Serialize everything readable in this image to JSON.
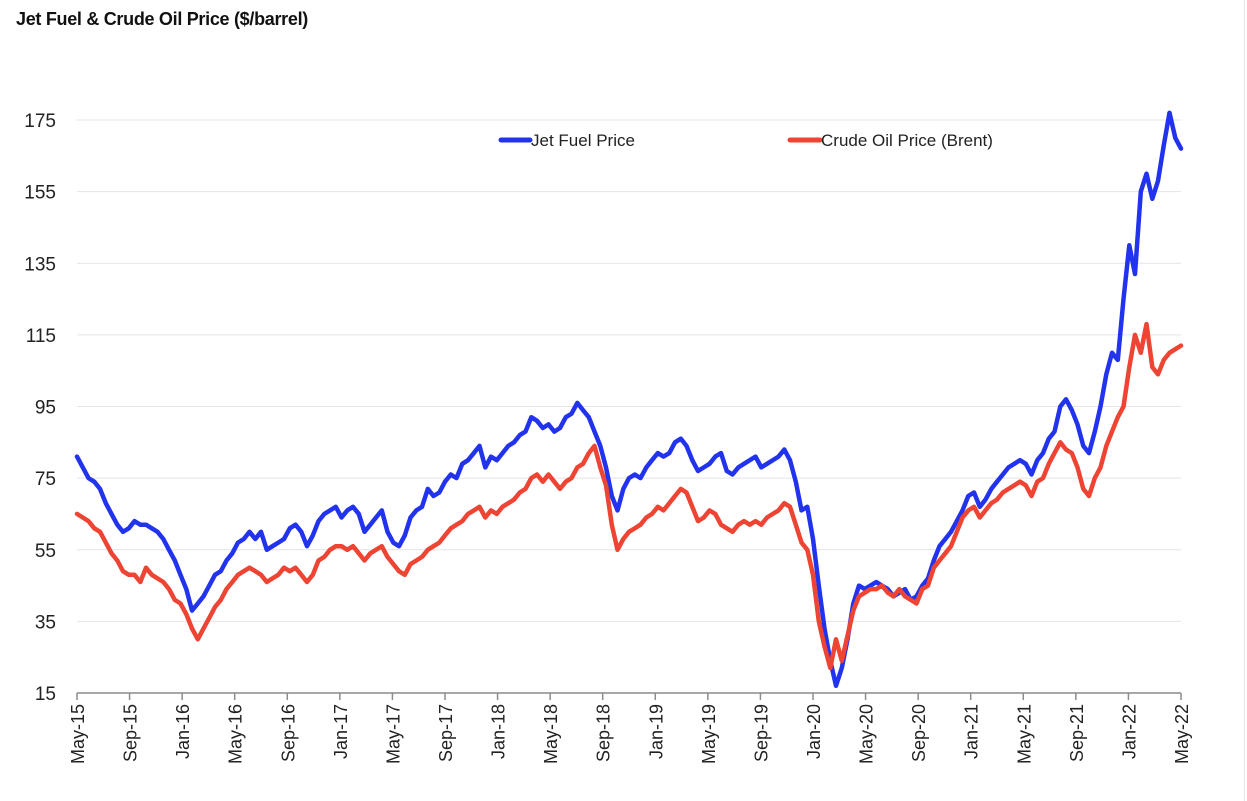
{
  "chart_data": {
    "type": "line",
    "title": "Jet Fuel & Crude Oil Price ($/barrel)",
    "xlabel": "",
    "ylabel": "",
    "ylim": [
      15,
      175
    ],
    "yticks": [
      15,
      35,
      55,
      75,
      95,
      115,
      135,
      155,
      175
    ],
    "x_start": "May-15",
    "x_end": "May-22",
    "x_step_months": 0.5,
    "xtick_labels": [
      "May-15",
      "Sep-15",
      "Jan-16",
      "May-16",
      "Sep-16",
      "Jan-17",
      "May-17",
      "Sep-17",
      "Jan-18",
      "May-18",
      "Sep-18",
      "Jan-19",
      "May-19",
      "Sep-19",
      "Jan-20",
      "May-20",
      "Sep-20",
      "Jan-21",
      "May-21",
      "Sep-21",
      "Jan-22",
      "May-22"
    ],
    "grid": true,
    "legend_position": "top-center",
    "series": [
      {
        "name": "Jet Fuel Price",
        "color": "#2233ee",
        "values": [
          81,
          78,
          75,
          74,
          72,
          68,
          65,
          62,
          60,
          61,
          63,
          62,
          62,
          61,
          60,
          58,
          55,
          52,
          48,
          44,
          38,
          40,
          42,
          45,
          48,
          49,
          52,
          54,
          57,
          58,
          60,
          58,
          60,
          55,
          56,
          57,
          58,
          61,
          62,
          60,
          56,
          59,
          63,
          65,
          66,
          67,
          64,
          66,
          67,
          65,
          60,
          62,
          64,
          66,
          60,
          57,
          56,
          59,
          64,
          66,
          67,
          72,
          70,
          71,
          74,
          76,
          75,
          79,
          80,
          82,
          84,
          78,
          81,
          80,
          82,
          84,
          85,
          87,
          88,
          92,
          91,
          89,
          90,
          88,
          89,
          92,
          93,
          96,
          94,
          92,
          88,
          84,
          78,
          70,
          66,
          72,
          75,
          76,
          75,
          78,
          80,
          82,
          81,
          82,
          85,
          86,
          84,
          80,
          77,
          78,
          79,
          81,
          82,
          77,
          76,
          78,
          79,
          80,
          81,
          78,
          79,
          80,
          81,
          83,
          80,
          74,
          66,
          67,
          58,
          45,
          33,
          24,
          17,
          22,
          30,
          40,
          45,
          44,
          45,
          46,
          45,
          44,
          42,
          43,
          44,
          41,
          42,
          45,
          47,
          52,
          56,
          58,
          60,
          63,
          66,
          70,
          71,
          67,
          69,
          72,
          74,
          76,
          78,
          79,
          80,
          79,
          76,
          80,
          82,
          86,
          88,
          95,
          97,
          94,
          90,
          84,
          82,
          88,
          95,
          104,
          110,
          108,
          125,
          140,
          132,
          155,
          160,
          153,
          158,
          168,
          177,
          170,
          167
        ]
      },
      {
        "name": "Crude Oil Price (Brent)",
        "color": "#ee4433",
        "values": [
          65,
          64,
          63,
          61,
          60,
          57,
          54,
          52,
          49,
          48,
          48,
          46,
          50,
          48,
          47,
          46,
          44,
          41,
          40,
          37,
          33,
          30,
          33,
          36,
          39,
          41,
          44,
          46,
          48,
          49,
          50,
          49,
          48,
          46,
          47,
          48,
          50,
          49,
          50,
          48,
          46,
          48,
          52,
          53,
          55,
          56,
          56,
          55,
          56,
          54,
          52,
          54,
          55,
          56,
          53,
          51,
          49,
          48,
          51,
          52,
          53,
          55,
          56,
          57,
          59,
          61,
          62,
          63,
          65,
          66,
          67,
          64,
          66,
          65,
          67,
          68,
          69,
          71,
          72,
          75,
          76,
          74,
          76,
          74,
          72,
          74,
          75,
          78,
          79,
          82,
          84,
          78,
          73,
          62,
          55,
          58,
          60,
          61,
          62,
          64,
          65,
          67,
          66,
          68,
          70,
          72,
          71,
          67,
          63,
          64,
          66,
          65,
          62,
          61,
          60,
          62,
          63,
          62,
          63,
          62,
          64,
          65,
          66,
          68,
          67,
          62,
          57,
          55,
          48,
          35,
          28,
          22,
          30,
          24,
          31,
          38,
          42,
          43,
          44,
          44,
          45,
          43,
          42,
          44,
          42,
          41,
          40,
          44,
          45,
          50,
          52,
          54,
          56,
          60,
          64,
          66,
          67,
          64,
          66,
          68,
          69,
          71,
          72,
          73,
          74,
          73,
          70,
          74,
          75,
          79,
          82,
          85,
          83,
          82,
          78,
          72,
          70,
          75,
          78,
          84,
          88,
          92,
          95,
          106,
          115,
          110,
          118,
          106,
          104,
          108,
          110,
          111,
          112
        ]
      }
    ]
  }
}
